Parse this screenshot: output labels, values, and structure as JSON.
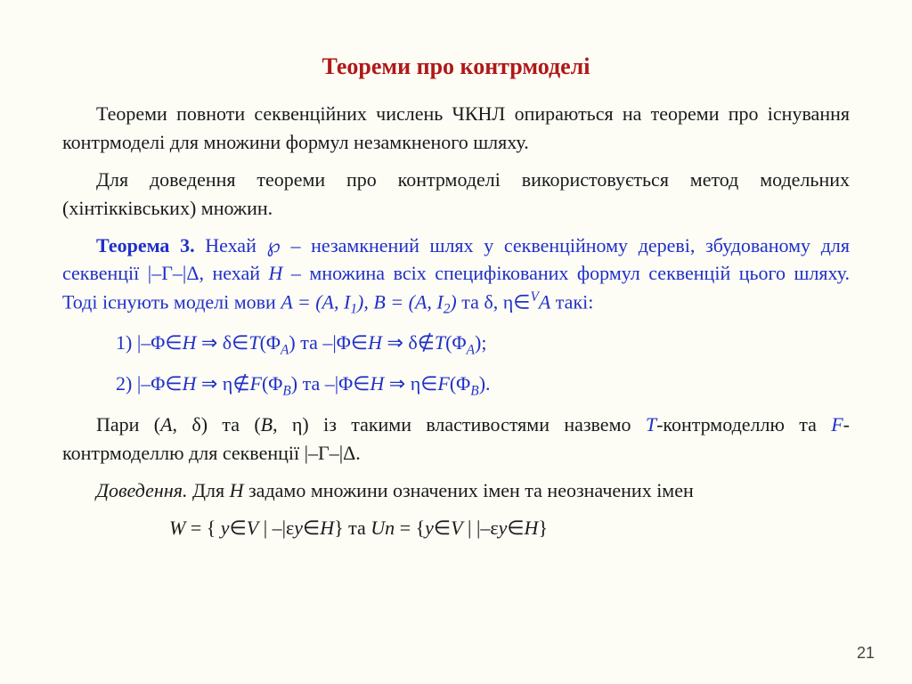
{
  "colors": {
    "background": "#fdfdf6",
    "text": "#1a1a1a",
    "blue": "#2030c8",
    "red": "#b01818",
    "pagenum": "#444444"
  },
  "fonts": {
    "body_family": "Times New Roman",
    "body_size_pt": 22,
    "title_size_pt": 26,
    "pagenum_family": "Arial",
    "pagenum_size_pt": 18
  },
  "title": "Теореми про контрмоделі",
  "p1": "Теореми повноти секвенційних числень ЧКНЛ опираються на теореми про існування контрмоделі для множини формул незамкненого шляху.",
  "p2": "Для доведення теореми про контрмоделі використовується метод модельних (хінтікківських) множин.",
  "theorem": {
    "label": "Теорема 3.",
    "t1": " Нехай ",
    "sym_wp": "℘",
    "t2": " – незамкнений шлях у секвенційному дереві, збудованому для секвенції ",
    "seq_lhs": "|–Γ–|Δ",
    "t3": ", нехай ",
    "H": "H",
    "t4": " – множина всіх специфікованих формул секвенцій цього шляху. Тоді існують моделі мови ",
    "modelA": "A = (A, I",
    "sub1": "1",
    "modelA_end": "),",
    "modelB": "B = (A, I",
    "sub2": "2",
    "modelB_end": ")",
    "t5": " та δ, η∈",
    "supV": "V",
    "A_after": "A",
    "t6": " такі:"
  },
  "line1": {
    "num": "1) ",
    "a": "|–Φ∈",
    "H1": "H",
    "b": " ⇒ δ∈",
    "T1": "T",
    "c": "(Φ",
    "subA1": "A",
    "d": ") та ",
    "e": "–|Φ∈",
    "H2": "H",
    "f": " ⇒ δ∉",
    "T2": "T",
    "g": "(Φ",
    "subA2": "A",
    "h": ");"
  },
  "line2": {
    "num": "2) ",
    "a": "|–Φ∈",
    "H1": "H",
    "b": " ⇒ η∉",
    "F1": "F",
    "c": "(Φ",
    "subB1": "B",
    "d": ") та ",
    "e": "–|Φ∈",
    "H2": "H",
    "f": " ⇒ η∈",
    "F2": "F",
    "g": "(Φ",
    "subB2": "B",
    "h": ")."
  },
  "p3": {
    "a": "Пари (",
    "A": "A",
    "b": ", δ) та (",
    "B": "B",
    "c": ", η) із такими властивостями назвемо ",
    "Tmodel": "T",
    "d": "-контрмоделлю та ",
    "Fmodel": "F",
    "e": "-контрмоделлю для секвенції ",
    "seq": "|–Γ–|Δ",
    "f": "."
  },
  "p4": {
    "pre": "Доведення.",
    "a": " Для ",
    "H": "H",
    "b": " задамо множини означених імен та неозначених імен"
  },
  "p5": {
    "a": "W",
    "b": " = { ",
    "c": "y",
    "d": "∈",
    "e": "V",
    "f": " | ",
    "g": "–|ε",
    "h": "y",
    "i": "∈",
    "j": "H",
    "k": "}   та   ",
    "l": "Un",
    "m": " = {",
    "n": "y",
    "o": "∈",
    "p": "V",
    "q": " | ",
    "r": "|–ε",
    "s": "y",
    "t": "∈",
    "u": "H",
    "v": "}"
  },
  "page_number": "21"
}
